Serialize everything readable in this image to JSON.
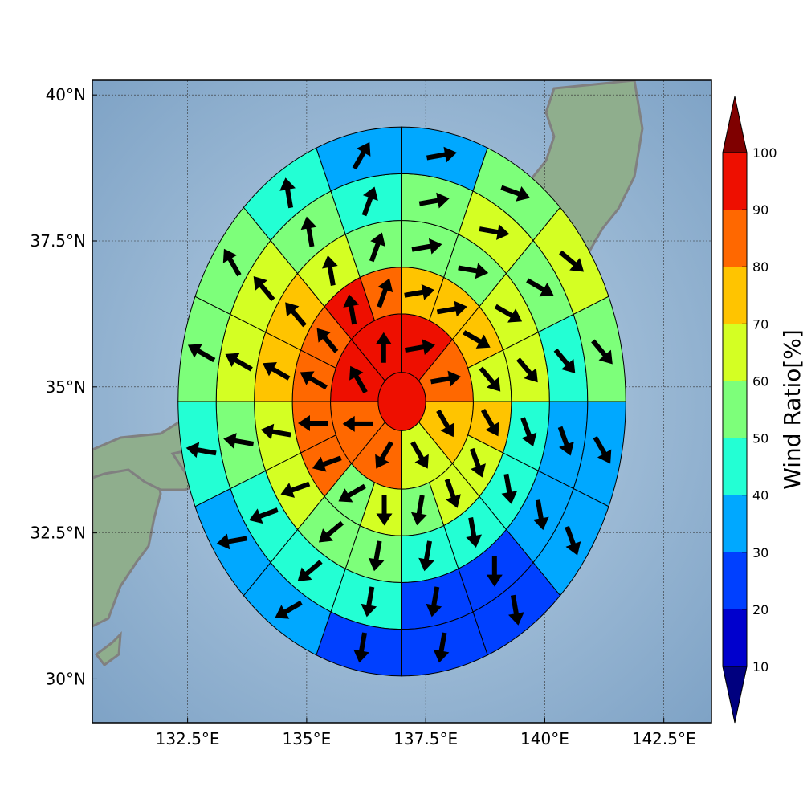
{
  "chart_data": {
    "type": "heatmap",
    "title": "",
    "xlabel": "",
    "ylabel": "",
    "map": {
      "lon_range": [
        130.5,
        143.5
      ],
      "lat_range": [
        29.25,
        40.25
      ],
      "center": [
        137.0,
        34.75
      ],
      "grid": true
    },
    "x_ticks": [
      {
        "value": 132.5,
        "label": "132.5°E"
      },
      {
        "value": 135,
        "label": "135°E"
      },
      {
        "value": 137.5,
        "label": "137.5°E"
      },
      {
        "value": 140,
        "label": "140°E"
      },
      {
        "value": 142.5,
        "label": "142.5°E"
      }
    ],
    "y_ticks": [
      {
        "value": 30,
        "label": "30°N"
      },
      {
        "value": 32.5,
        "label": "32.5°N"
      },
      {
        "value": 35,
        "label": "35°N"
      },
      {
        "value": 37.5,
        "label": "37.5°N"
      },
      {
        "value": 40,
        "label": "40°N"
      }
    ],
    "rings": [
      {
        "r_deg": [
          0,
          0.5
        ],
        "sectors": 1,
        "values": [
          95
        ],
        "arrows": []
      },
      {
        "r_deg": [
          0.5,
          1.5
        ],
        "sectors": 8,
        "values": [
          95,
          85,
          75,
          65,
          85,
          85,
          95,
          95
        ],
        "arrows": [
          80,
          80,
          150,
          150,
          210,
          270,
          330,
          0
        ]
      },
      {
        "r_deg": [
          1.5,
          2.3
        ],
        "sectors": 16,
        "values": [
          75,
          75,
          75,
          65,
          75,
          65,
          65,
          55,
          65,
          55,
          85,
          85,
          85,
          85,
          95,
          85
        ],
        "arrows": [
          80,
          80,
          120,
          140,
          150,
          160,
          160,
          190,
          180,
          240,
          250,
          270,
          300,
          320,
          350,
          20
        ]
      },
      {
        "r_deg": [
          2.3,
          3.1
        ],
        "sectors": 16,
        "values": [
          55,
          55,
          65,
          65,
          45,
          45,
          45,
          45,
          55,
          55,
          65,
          65,
          75,
          75,
          65,
          55
        ],
        "arrows": [
          80,
          100,
          120,
          140,
          160,
          170,
          170,
          190,
          190,
          230,
          250,
          280,
          300,
          320,
          350,
          20
        ]
      },
      {
        "r_deg": [
          3.1,
          3.9
        ],
        "sectors": 16,
        "values": [
          55,
          65,
          55,
          45,
          35,
          35,
          25,
          25,
          45,
          45,
          45,
          55,
          65,
          65,
          55,
          45
        ],
        "arrows": [
          80,
          100,
          120,
          140,
          160,
          170,
          180,
          190,
          190,
          230,
          250,
          280,
          300,
          320,
          350,
          20
        ]
      },
      {
        "r_deg": [
          3.9,
          4.7
        ],
        "sectors": 16,
        "values": [
          35,
          55,
          65,
          55,
          35,
          35,
          25,
          25,
          25,
          35,
          35,
          45,
          55,
          55,
          45,
          35
        ],
        "arrows": [
          80,
          110,
          130,
          140,
          150,
          160,
          170,
          190,
          190,
          240,
          260,
          280,
          300,
          330,
          350,
          30
        ]
      }
    ],
    "colorbar": {
      "label": "Wind Ratio[%]",
      "levels": [
        10,
        20,
        30,
        40,
        50,
        60,
        70,
        80,
        90,
        100
      ],
      "tick_labels": [
        "10",
        "20",
        "30",
        "40",
        "50",
        "60",
        "70",
        "80",
        "90",
        "100"
      ],
      "band_colors": [
        "#0000cd",
        "#0040ff",
        "#00a8ff",
        "#23ffd4",
        "#7dff7a",
        "#d4ff23",
        "#ffc400",
        "#ff6800",
        "#ee0f00"
      ],
      "under_color": "#00007f",
      "over_color": "#7f0000",
      "extend": "both"
    }
  },
  "colors": {
    "ocean": "#9bbbd6",
    "land": "#8fb08f",
    "coast": "#808080"
  }
}
